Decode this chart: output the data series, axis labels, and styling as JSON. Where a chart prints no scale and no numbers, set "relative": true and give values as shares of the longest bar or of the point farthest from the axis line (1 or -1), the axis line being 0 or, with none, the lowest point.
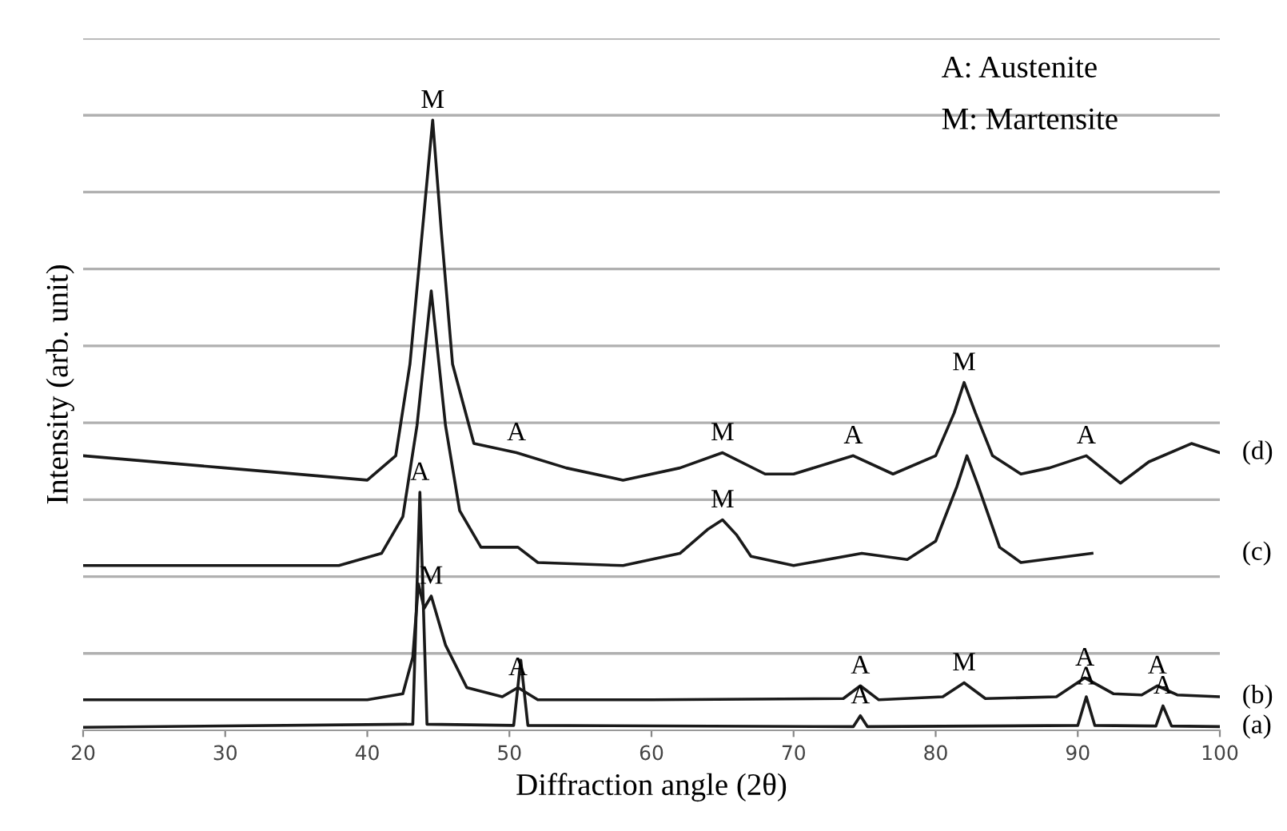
{
  "chart_data": {
    "type": "line",
    "relative": true,
    "xlabel": "Diffraction angle (2θ)",
    "ylabel": "Intensity (arb. unit)",
    "xlim": [
      20,
      100
    ],
    "xticks": [
      20,
      30,
      40,
      50,
      60,
      70,
      80,
      90,
      100
    ],
    "tick_labels": "x",
    "marker": "none",
    "line_style": "solid",
    "legend": false,
    "series": [
      {
        "name": "(a)",
        "color": "#1a1a1a",
        "x": [
          20,
          43.2,
          43.7,
          44.2,
          50.3,
          50.8,
          51.3,
          74.2,
          74.7,
          75.2,
          90.0,
          90.6,
          91.2,
          95.5,
          96.0,
          96.6,
          100
        ],
        "values": [
          0.005,
          0.01,
          0.39,
          0.01,
          0.008,
          0.115,
          0.008,
          0.006,
          0.024,
          0.006,
          0.008,
          0.055,
          0.008,
          0.007,
          0.04,
          0.007,
          0.006
        ]
      },
      {
        "name": "(b)",
        "color": "#1a1a1a",
        "x": [
          20,
          40,
          42.5,
          43.2,
          43.6,
          44.0,
          44.5,
          45.5,
          47,
          49.5,
          50.6,
          52,
          60,
          73.5,
          74.7,
          76,
          80.5,
          82,
          83.5,
          88.5,
          90.5,
          92.5,
          94.5,
          95.6,
          97,
          100
        ],
        "values": [
          0.05,
          0.05,
          0.06,
          0.12,
          0.24,
          0.2,
          0.22,
          0.14,
          0.07,
          0.055,
          0.07,
          0.05,
          0.05,
          0.052,
          0.073,
          0.05,
          0.055,
          0.078,
          0.052,
          0.055,
          0.086,
          0.06,
          0.058,
          0.073,
          0.058,
          0.055
        ]
      },
      {
        "name": "(c)",
        "color": "#1a1a1a",
        "x": [
          20,
          38,
          41,
          42.5,
          43.5,
          44.5,
          45.5,
          46.5,
          48,
          50.6,
          52,
          58,
          62,
          64,
          65,
          66,
          67,
          70,
          74.8,
          78,
          80,
          81.5,
          82.2,
          83,
          84.5,
          86,
          91
        ],
        "values": [
          0.27,
          0.27,
          0.29,
          0.35,
          0.5,
          0.72,
          0.5,
          0.36,
          0.3,
          0.3,
          0.275,
          0.27,
          0.29,
          0.33,
          0.345,
          0.32,
          0.285,
          0.27,
          0.29,
          0.28,
          0.31,
          0.4,
          0.45,
          0.4,
          0.3,
          0.275,
          0.29
        ]
      },
      {
        "name": "(d)",
        "color": "#1a1a1a",
        "x": [
          20,
          30,
          40,
          42,
          43,
          44,
          44.6,
          45.2,
          46,
          47.5,
          50.5,
          54,
          58,
          62,
          65,
          68,
          70,
          74.2,
          77,
          80,
          81.3,
          82,
          82.8,
          84,
          86,
          88,
          90.6,
          93,
          95,
          98,
          100
        ],
        "values": [
          0.45,
          0.43,
          0.41,
          0.45,
          0.6,
          0.85,
          1.0,
          0.82,
          0.6,
          0.47,
          0.455,
          0.43,
          0.41,
          0.43,
          0.455,
          0.42,
          0.42,
          0.45,
          0.42,
          0.45,
          0.52,
          0.57,
          0.52,
          0.45,
          0.42,
          0.43,
          0.45,
          0.405,
          0.44,
          0.47,
          0.455
        ]
      }
    ],
    "ref_lines": [
      {
        "axis": "y",
        "value": 0.126,
        "color": "#b0b0b0"
      },
      {
        "axis": "y",
        "value": 0.252,
        "color": "#b0b0b0"
      },
      {
        "axis": "y",
        "value": 0.378,
        "color": "#b0b0b0"
      },
      {
        "axis": "y",
        "value": 0.504,
        "color": "#b0b0b0"
      },
      {
        "axis": "y",
        "value": 0.63,
        "color": "#b0b0b0"
      },
      {
        "axis": "y",
        "value": 0.756,
        "color": "#b0b0b0"
      },
      {
        "axis": "y",
        "value": 0.882,
        "color": "#b0b0b0"
      },
      {
        "axis": "y",
        "value": 1.008,
        "color": "#b0b0b0"
      },
      {
        "axis": "y",
        "value": 1.134,
        "color": "#b0b0b0"
      }
    ],
    "annotations": [
      "A: Austenite",
      "M: Martensite",
      {
        "text": "M",
        "x": 44.6,
        "y": 1.0
      },
      {
        "text": "A",
        "x": 50.5,
        "y": 0.455
      },
      {
        "text": "M",
        "x": 65,
        "y": 0.455
      },
      {
        "text": "A",
        "x": 74.2,
        "y": 0.45
      },
      {
        "text": "M",
        "x": 82,
        "y": 0.57
      },
      {
        "text": "A",
        "x": 90.6,
        "y": 0.45
      },
      {
        "text": "A",
        "x": 43.7,
        "y": 0.39
      },
      {
        "text": "M",
        "x": 65,
        "y": 0.345
      },
      {
        "text": "M",
        "x": 44.5,
        "y": 0.22
      },
      {
        "text": "A",
        "x": 50.6,
        "y": 0.07
      },
      {
        "text": "A",
        "x": 74.7,
        "y": 0.073
      },
      {
        "text": "M",
        "x": 82,
        "y": 0.078
      },
      {
        "text": "A",
        "x": 90.5,
        "y": 0.086
      },
      {
        "text": "A",
        "x": 95.6,
        "y": 0.073
      },
      {
        "text": "A",
        "x": 74.7,
        "y": 0.024
      },
      {
        "text": "A",
        "x": 90.6,
        "y": 0.055
      },
      {
        "text": "A",
        "x": 96,
        "y": 0.04
      }
    ]
  }
}
